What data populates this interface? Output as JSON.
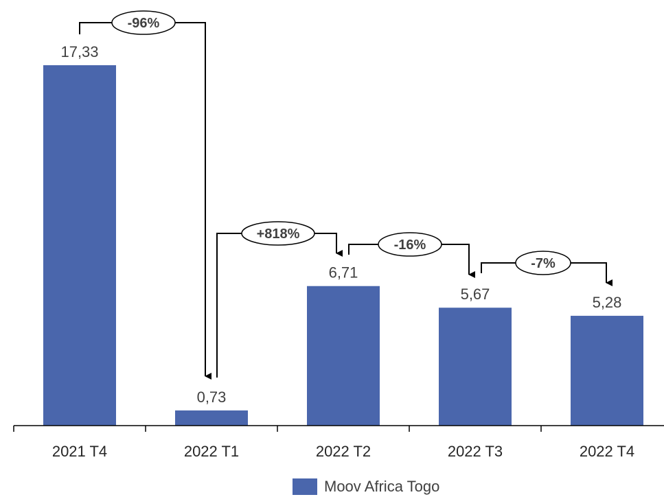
{
  "chart_data": {
    "type": "bar",
    "categories": [
      "2021 T4",
      "2022 T1",
      "2022 T2",
      "2022 T3",
      "2022 T4"
    ],
    "series": [
      {
        "name": "Moov Africa Togo",
        "values": [
          17.33,
          0.73,
          6.71,
          5.67,
          5.28
        ],
        "labels": [
          "17,33",
          "0,73",
          "6,71",
          "5,67",
          "5,28"
        ],
        "color": "#4a66ac"
      }
    ],
    "changes": [
      {
        "from": "2021 T4",
        "to": "2022 T1",
        "label": "-96%"
      },
      {
        "from": "2022 T1",
        "to": "2022 T2",
        "label": "+818%"
      },
      {
        "from": "2022 T2",
        "to": "2022 T3",
        "label": "-16%"
      },
      {
        "from": "2022 T3",
        "to": "2022 T4",
        "label": "-7%"
      }
    ],
    "legend_position": "bottom-center",
    "grid": false,
    "ylim": [
      0,
      20
    ]
  }
}
